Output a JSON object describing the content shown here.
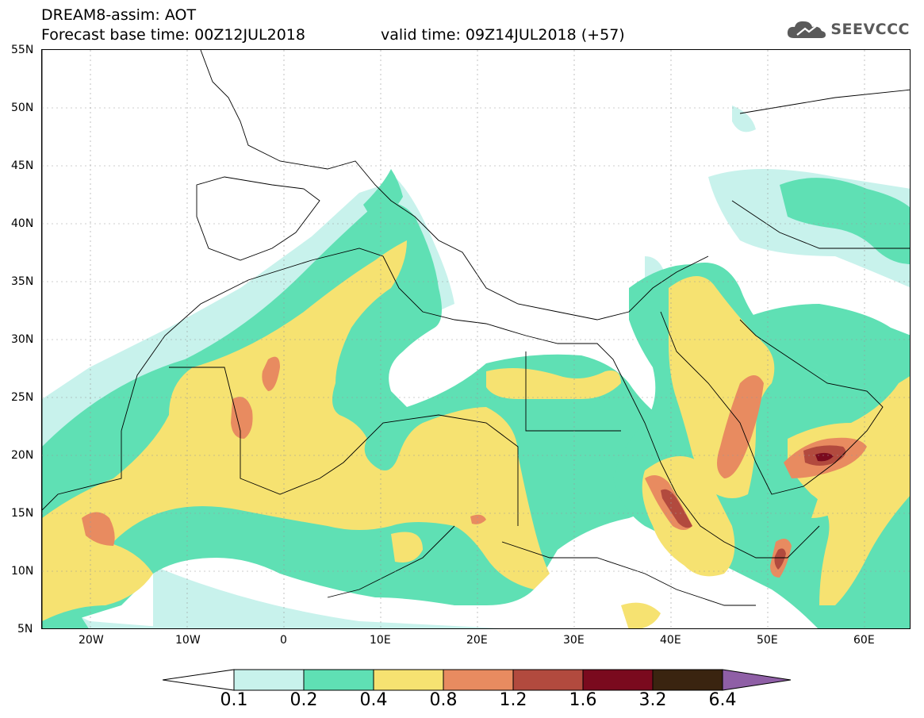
{
  "header": {
    "line1": "DREAM8-assim: AOT",
    "line2a": "Forecast base time: 00Z12JUL2018",
    "line2b": "valid time: 09Z14JUL2018 (+57)"
  },
  "logo": {
    "icon": "cloud-icon",
    "text": "SEEVCCC"
  },
  "axes": {
    "lat_labels": [
      "55N",
      "50N",
      "45N",
      "40N",
      "35N",
      "30N",
      "25N",
      "20N",
      "15N",
      "10N",
      "5N"
    ],
    "lon_labels": [
      "20W",
      "10W",
      "0",
      "10E",
      "20E",
      "30E",
      "40E",
      "50E",
      "60E"
    ]
  },
  "colorbar": {
    "labels": [
      "0.1",
      "0.2",
      "0.4",
      "0.8",
      "1.2",
      "1.6",
      "3.2",
      "6.4"
    ],
    "colors": [
      "#ffffff",
      "#c8f2ec",
      "#5fe0b4",
      "#f6e271",
      "#e88b60",
      "#b24a3e",
      "#7a0a1e",
      "#3a2410",
      "#8f5fa6"
    ]
  },
  "palette": {
    "c01": "#c8f2ec",
    "c02": "#5fe0b4",
    "c04": "#f6e271",
    "c08": "#e88b60",
    "c12": "#b24a3e",
    "c16": "#7a0a1e",
    "c32": "#3a2410"
  }
}
